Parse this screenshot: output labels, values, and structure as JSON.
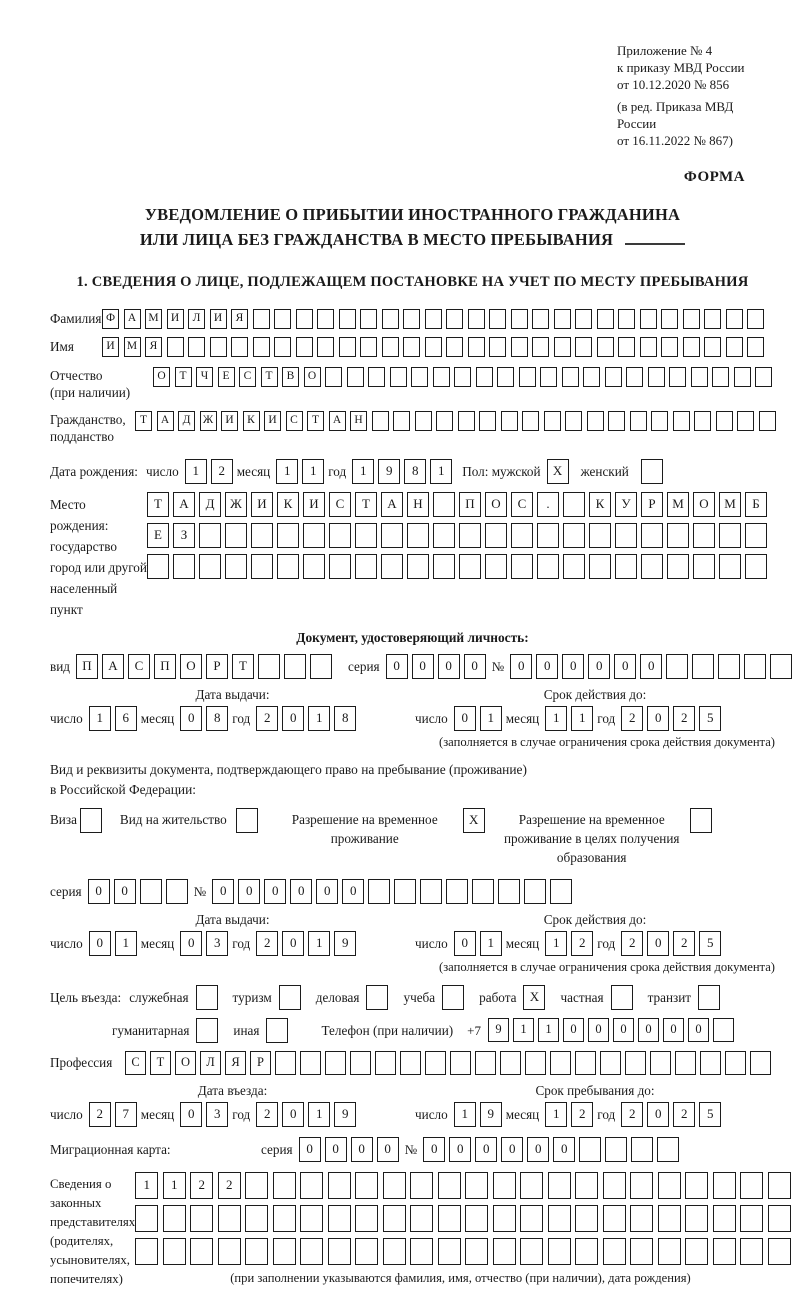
{
  "meta": {
    "appendix_lines": [
      "Приложение № 4",
      "к приказу МВД России",
      "от 10.12.2020 № 856",
      "(в ред. Приказа МВД России",
      "от 16.11.2022 № 867)"
    ],
    "form_label": "ФОРМА",
    "title_line1": "УВЕДОМЛЕНИЕ О ПРИБЫТИИ ИНОСТРАННОГО ГРАЖДАНИНА",
    "title_line2": "ИЛИ ЛИЦА БЕЗ ГРАЖДАНСТВА В МЕСТО ПРЕБЫВАНИЯ",
    "section1_title": "1. СВЕДЕНИЯ О ЛИЦЕ, ПОДЛЕЖАЩЕМ ПОСТАНОВКЕ НА УЧЕТ ПО МЕСТУ ПРЕБЫВАНИЯ"
  },
  "words": {
    "day": "число",
    "month": "месяц",
    "year": "год",
    "series": "серия",
    "number": "№"
  },
  "person": {
    "surname": {
      "label": "Фамилия",
      "boxes": {
        "value": "ФАМИЛИЯ",
        "total": 31
      }
    },
    "name": {
      "label": "Имя",
      "boxes": {
        "value": "ИМЯ",
        "total": 31
      }
    },
    "patronymic": {
      "label_line1": "Отчество",
      "label_line2": "(при наличии)",
      "boxes": {
        "value": "ОТЧЕСТВО",
        "total": 29
      }
    },
    "citizenship": {
      "label_line1": "Гражданство,",
      "label_line2": "подданство",
      "boxes": {
        "value": "ТАДЖИКИСТАН",
        "total": 30
      }
    }
  },
  "birth": {
    "date_label": "Дата рождения:",
    "day": {
      "value": "12",
      "total": 2
    },
    "month": {
      "value": "11",
      "total": 2
    },
    "year": {
      "value": "1981",
      "total": 4
    },
    "sex_label": "Пол: мужской",
    "male_box": {
      "value": "X",
      "total": 1
    },
    "female_label": "женский",
    "female_box": {
      "value": "",
      "total": 1
    },
    "place_label_lines": [
      "Место рождения:",
      "государство",
      "город или другой",
      "населенный пункт"
    ],
    "place_rows": [
      {
        "value": "ТАДЖИКИСТАН ПОС. КУРМОМБ",
        "total": 24
      },
      {
        "value": "ЕЗ",
        "total": 24
      },
      {
        "value": "",
        "total": 24
      }
    ]
  },
  "identity_doc": {
    "header": "Документ, удостоверяющий личность:",
    "kind_label": "вид",
    "kind": {
      "value": "ПАСПОРТ",
      "total": 10
    },
    "series": {
      "value": "0000",
      "total": 4
    },
    "number": {
      "value": "000000",
      "total": 11
    },
    "issue": {
      "label": "Дата выдачи:",
      "day": {
        "value": "16",
        "total": 2
      },
      "month": {
        "value": "08",
        "total": 2
      },
      "year": {
        "value": "2018",
        "total": 4
      }
    },
    "expiry": {
      "label": "Срок действия до:",
      "day": {
        "value": "01",
        "total": 2
      },
      "month": {
        "value": "11",
        "total": 2
      },
      "year": {
        "value": "2025",
        "total": 4
      }
    },
    "expiry_note": "(заполняется в случае ограничения срока действия документа)"
  },
  "residence_doc": {
    "intro_line1": "Вид и реквизиты документа, подтверждающего право на пребывание (проживание)",
    "intro_line2": "в Российской Федерации:",
    "options": [
      {
        "label": "Виза",
        "box": {
          "value": "",
          "total": 1
        }
      },
      {
        "label": "Вид на жительство",
        "box": {
          "value": "",
          "total": 1
        }
      },
      {
        "label": "Разрешение на временное проживание",
        "box": {
          "value": "X",
          "total": 1
        }
      },
      {
        "label": "Разрешение на временное проживание в целях получения образования",
        "box": {
          "value": "",
          "total": 1
        }
      }
    ],
    "series": {
      "value": "00",
      "total": 4
    },
    "number": {
      "value": "000000",
      "total": 14
    },
    "issue": {
      "label": "Дата выдачи:",
      "day": {
        "value": "01",
        "total": 2
      },
      "month": {
        "value": "03",
        "total": 2
      },
      "year": {
        "value": "2019",
        "total": 4
      }
    },
    "expiry": {
      "label": "Срок действия до:",
      "day": {
        "value": "01",
        "total": 2
      },
      "month": {
        "value": "12",
        "total": 2
      },
      "year": {
        "value": "2025",
        "total": 4
      }
    },
    "expiry_note": "(заполняется в случае ограничения срока действия документа)"
  },
  "visit": {
    "purpose_label": "Цель въезда:",
    "purposes": [
      {
        "label": "служебная",
        "box": {
          "value": "",
          "total": 1
        }
      },
      {
        "label": "туризм",
        "box": {
          "value": "",
          "total": 1
        }
      },
      {
        "label": "деловая",
        "box": {
          "value": "",
          "total": 1
        }
      },
      {
        "label": "учеба",
        "box": {
          "value": "",
          "total": 1
        }
      },
      {
        "label": "работа",
        "box": {
          "value": "X",
          "total": 1
        }
      },
      {
        "label": "частная",
        "box": {
          "value": "",
          "total": 1
        }
      },
      {
        "label": "транзит",
        "box": {
          "value": "",
          "total": 1
        }
      },
      {
        "label": "гуманитарная",
        "box": {
          "value": "",
          "total": 1
        }
      },
      {
        "label": "иная",
        "box": {
          "value": "",
          "total": 1
        }
      }
    ],
    "phone_label": "Телефон (при наличии)",
    "phone_prefix": "+7",
    "phone": {
      "value": "911000000",
      "total": 10
    },
    "profession_label": "Профессия",
    "profession": {
      "value": "СТОЛЯР",
      "total": 26
    },
    "entry": {
      "label": "Дата въезда:",
      "day": {
        "value": "27",
        "total": 2
      },
      "month": {
        "value": "03",
        "total": 2
      },
      "year": {
        "value": "2019",
        "total": 4
      }
    },
    "stay": {
      "label": "Срок пребывания до:",
      "day": {
        "value": "19",
        "total": 2
      },
      "month": {
        "value": "12",
        "total": 2
      },
      "year": {
        "value": "2025",
        "total": 4
      }
    },
    "migration_card_label": "Миграционная карта:",
    "migration_series": {
      "value": "0000",
      "total": 4
    },
    "migration_number": {
      "value": "000000",
      "total": 10
    }
  },
  "representatives": {
    "label_lines": [
      "Сведения о",
      "законных",
      "представителях",
      "(родителях,",
      "усыновителях,",
      "попечителях)"
    ],
    "rows": [
      {
        "value": "1122",
        "total": 24
      },
      {
        "value": "",
        "total": 24
      },
      {
        "value": "",
        "total": 24
      }
    ],
    "note": "(при заполнении указываются фамилия, имя, отчество (при наличии), дата рождения)"
  }
}
